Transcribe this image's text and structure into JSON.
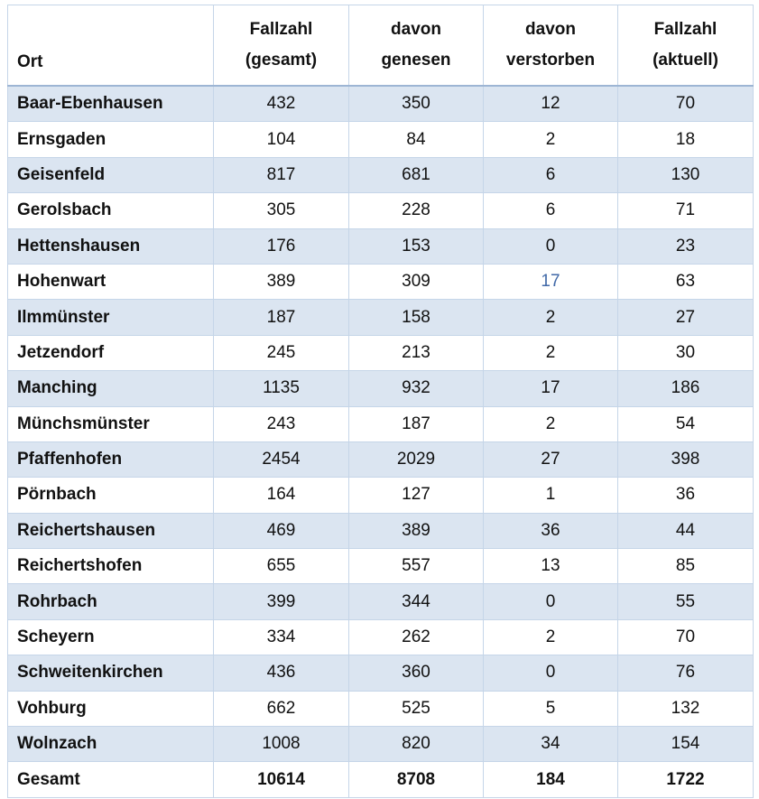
{
  "table": {
    "header": [
      [
        "Ort"
      ],
      [
        "Fallzahl",
        "(gesamt)"
      ],
      [
        "davon",
        "genesen"
      ],
      [
        "davon",
        "verstorben"
      ],
      [
        "Fallzahl",
        "(aktuell)"
      ]
    ],
    "rows": [
      [
        "Baar-Ebenhausen",
        432,
        350,
        12,
        70
      ],
      [
        "Ernsgaden",
        104,
        84,
        2,
        18
      ],
      [
        "Geisenfeld",
        817,
        681,
        6,
        130
      ],
      [
        "Gerolsbach",
        305,
        228,
        6,
        71
      ],
      [
        "Hettenshausen",
        176,
        153,
        0,
        23
      ],
      [
        "Hohenwart",
        389,
        309,
        17,
        63
      ],
      [
        "Ilmmünster",
        187,
        158,
        2,
        27
      ],
      [
        "Jetzendorf",
        245,
        213,
        2,
        30
      ],
      [
        "Manching",
        1135,
        932,
        17,
        186
      ],
      [
        "Münchsmünster",
        243,
        187,
        2,
        54
      ],
      [
        "Pfaffenhofen",
        2454,
        2029,
        27,
        398
      ],
      [
        "Pörnbach",
        164,
        127,
        1,
        36
      ],
      [
        "Reichertshausen",
        469,
        389,
        36,
        44
      ],
      [
        "Reichertshofen",
        655,
        557,
        13,
        85
      ],
      [
        "Rohrbach",
        399,
        344,
        0,
        55
      ],
      [
        "Scheyern",
        334,
        262,
        2,
        70
      ],
      [
        "Schweitenkirchen",
        436,
        360,
        0,
        76
      ],
      [
        "Vohburg",
        662,
        525,
        5,
        132
      ],
      [
        "Wolnzach",
        1008,
        820,
        34,
        154
      ]
    ],
    "total": [
      "Gesamt",
      10614,
      8708,
      184,
      1722
    ]
  }
}
